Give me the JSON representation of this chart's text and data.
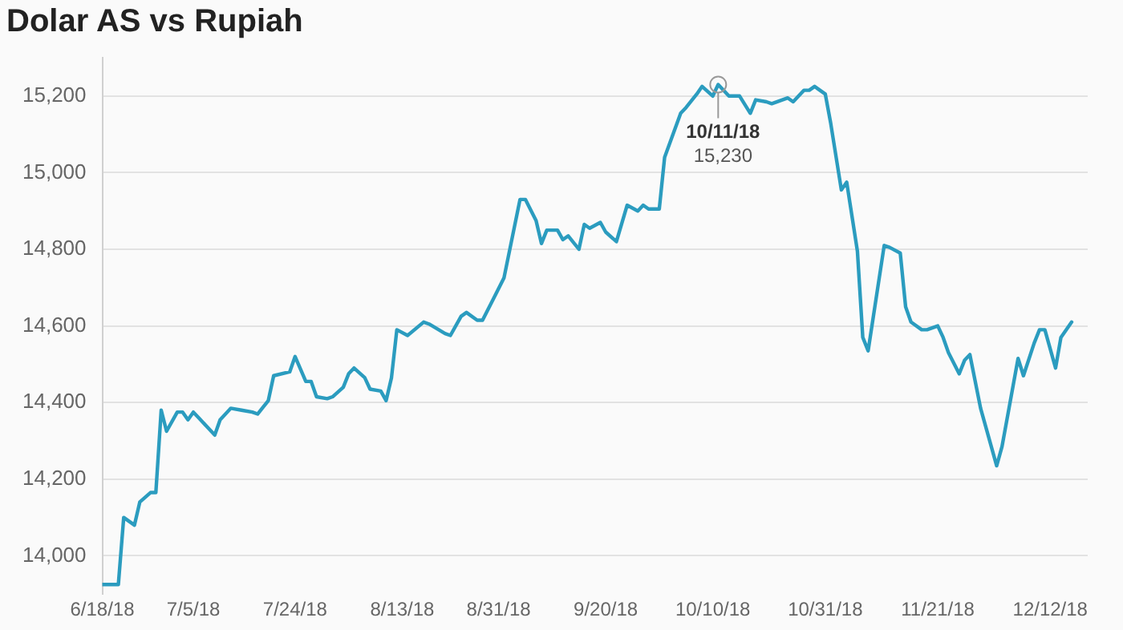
{
  "chart_data": {
    "type": "line",
    "title": "Dolar AS vs Rupiah",
    "x": [
      "2018-06-18",
      "2018-06-21",
      "2018-06-22",
      "2018-06-24",
      "2018-06-25",
      "2018-06-27",
      "2018-06-28",
      "2018-06-29",
      "2018-06-30",
      "2018-07-02",
      "2018-07-03",
      "2018-07-04",
      "2018-07-05",
      "2018-07-06",
      "2018-07-09",
      "2018-07-10",
      "2018-07-12",
      "2018-07-14",
      "2018-07-16",
      "2018-07-17",
      "2018-07-19",
      "2018-07-20",
      "2018-07-23",
      "2018-07-24",
      "2018-07-26",
      "2018-07-27",
      "2018-07-28",
      "2018-07-30",
      "2018-07-31",
      "2018-08-02",
      "2018-08-03",
      "2018-08-04",
      "2018-08-06",
      "2018-08-07",
      "2018-08-09",
      "2018-08-10",
      "2018-08-11",
      "2018-08-12",
      "2018-08-14",
      "2018-08-17",
      "2018-08-18",
      "2018-08-21",
      "2018-08-22",
      "2018-08-24",
      "2018-08-25",
      "2018-08-27",
      "2018-08-28",
      "2018-08-30",
      "2018-09-01",
      "2018-09-04",
      "2018-09-05",
      "2018-09-07",
      "2018-09-08",
      "2018-09-09",
      "2018-09-11",
      "2018-09-12",
      "2018-09-13",
      "2018-09-15",
      "2018-09-16",
      "2018-09-17",
      "2018-09-19",
      "2018-09-20",
      "2018-09-22",
      "2018-09-24",
      "2018-09-26",
      "2018-09-27",
      "2018-09-28",
      "2018-09-30",
      "2018-10-01",
      "2018-10-04",
      "2018-10-05",
      "2018-10-07",
      "2018-10-08",
      "2018-10-10",
      "2018-10-11",
      "2018-10-13",
      "2018-10-15",
      "2018-10-17",
      "2018-10-18",
      "2018-10-20",
      "2018-10-21",
      "2018-10-24",
      "2018-10-25",
      "2018-10-27",
      "2018-10-28",
      "2018-10-29",
      "2018-10-31",
      "2018-11-01",
      "2018-11-03",
      "2018-11-04",
      "2018-11-06",
      "2018-11-07",
      "2018-11-08",
      "2018-11-11",
      "2018-11-12",
      "2018-11-14",
      "2018-11-15",
      "2018-11-16",
      "2018-11-18",
      "2018-11-19",
      "2018-11-21",
      "2018-11-22",
      "2018-11-23",
      "2018-11-25",
      "2018-11-26",
      "2018-11-27",
      "2018-11-29",
      "2018-12-02",
      "2018-12-03",
      "2018-12-06",
      "2018-12-07",
      "2018-12-09",
      "2018-12-10",
      "2018-12-11",
      "2018-12-13",
      "2018-12-14",
      "2018-12-16"
    ],
    "series": [
      {
        "color": "#2b9cbf",
        "values": [
          13925,
          13925,
          14100,
          14080,
          14140,
          14165,
          14165,
          14380,
          14325,
          14375,
          14375,
          14355,
          14375,
          14360,
          14315,
          14355,
          14385,
          14380,
          14375,
          14370,
          14405,
          14470,
          14480,
          14520,
          14455,
          14455,
          14415,
          14410,
          14415,
          14440,
          14475,
          14490,
          14465,
          14435,
          14430,
          14405,
          14465,
          14590,
          14575,
          14610,
          14605,
          14580,
          14575,
          14625,
          14635,
          14615,
          14615,
          14670,
          14725,
          14930,
          14930,
          14875,
          14815,
          14850,
          14850,
          14825,
          14835,
          14800,
          14865,
          14855,
          14870,
          14845,
          14820,
          14915,
          14900,
          14915,
          14905,
          14905,
          15040,
          15155,
          15170,
          15205,
          15225,
          15200,
          15230,
          15200,
          15200,
          15155,
          15190,
          15185,
          15180,
          15195,
          15185,
          15215,
          15215,
          15225,
          15205,
          15130,
          14955,
          14975,
          14795,
          14570,
          14535,
          14810,
          14805,
          14790,
          14650,
          14610,
          14590,
          14590,
          14600,
          14570,
          14530,
          14475,
          14510,
          14525,
          14385,
          14235,
          14285,
          14515,
          14470,
          14555,
          14590,
          14590,
          14490,
          14570,
          14610
        ]
      }
    ],
    "xlim": [
      "2018-06-18",
      "2018-12-19"
    ],
    "xticks": [
      {
        "value": "2018-06-18",
        "label": "6/18/18"
      },
      {
        "value": "2018-07-05",
        "label": "7/5/18"
      },
      {
        "value": "2018-07-24",
        "label": "7/24/18"
      },
      {
        "value": "2018-08-13",
        "label": "8/13/18"
      },
      {
        "value": "2018-08-31",
        "label": "8/31/18"
      },
      {
        "value": "2018-09-20",
        "label": "9/20/18"
      },
      {
        "value": "2018-10-10",
        "label": "10/10/18"
      },
      {
        "value": "2018-10-31",
        "label": "10/31/18"
      },
      {
        "value": "2018-11-21",
        "label": "11/21/18"
      },
      {
        "value": "2018-12-12",
        "label": "12/12/18"
      }
    ],
    "ylim": [
      13900,
      15300
    ],
    "yticks": [
      {
        "value": 14000,
        "label": "14,000"
      },
      {
        "value": 14200,
        "label": "14,200"
      },
      {
        "value": 14400,
        "label": "14,400"
      },
      {
        "value": 14600,
        "label": "14,600"
      },
      {
        "value": 14800,
        "label": "14,800"
      },
      {
        "value": 15000,
        "label": "15,000"
      },
      {
        "value": 15200,
        "label": "15,200"
      }
    ],
    "grid": "y",
    "legend": false,
    "marker": "none",
    "line_style": "solid",
    "annotations": [
      {
        "text": "10/11/18\n15,230",
        "x": "2018-10-11",
        "y": 15230
      }
    ]
  }
}
